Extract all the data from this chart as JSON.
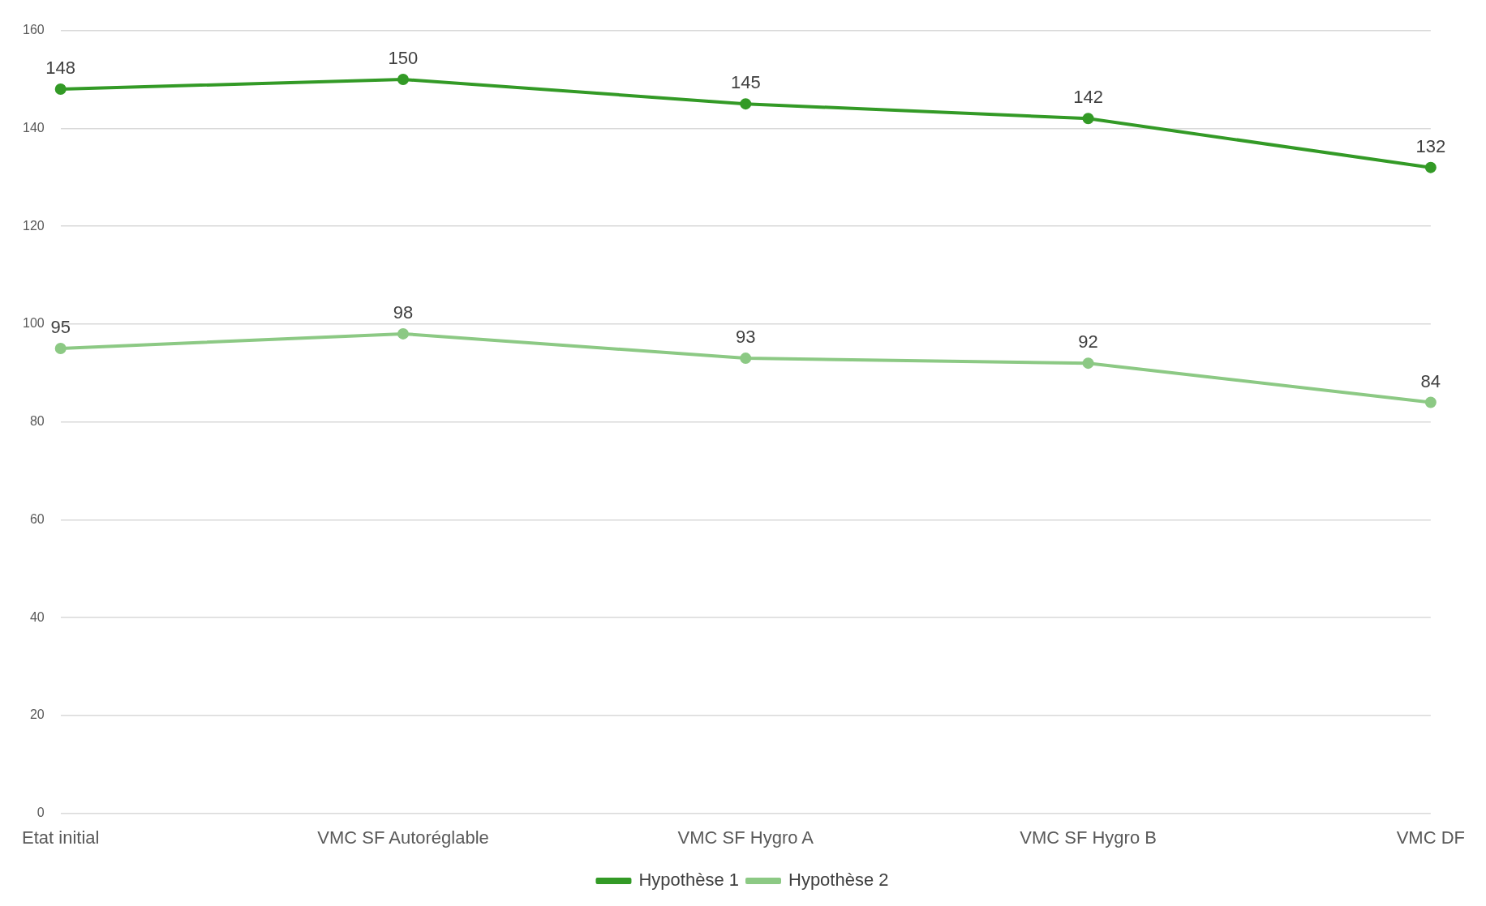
{
  "chart_data": {
    "type": "line",
    "categories": [
      "Etat initial",
      "VMC SF Autoréglable",
      "VMC SF Hygro A",
      "VMC SF Hygro B",
      "VMC DF"
    ],
    "series": [
      {
        "name": "Hypothèse 1",
        "color": "#339a26",
        "values": [
          148,
          150,
          145,
          142,
          132
        ]
      },
      {
        "name": "Hypothèse 2",
        "color": "#8cc984",
        "values": [
          95,
          98,
          93,
          92,
          84
        ]
      }
    ],
    "ylim": [
      0,
      160
    ],
    "yticks": [
      0,
      20,
      40,
      60,
      80,
      100,
      120,
      140,
      160
    ],
    "grid": "y",
    "legend": "bottom",
    "marker": "circle",
    "line_style": "solid",
    "data_labels": true
  }
}
